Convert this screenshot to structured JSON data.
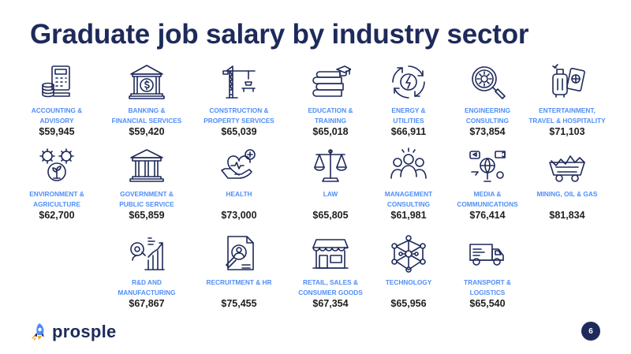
{
  "title": "Graduate job salary by industry sector",
  "sectors": [
    {
      "label": "ACCOUNTING &\nADVISORY",
      "salary": "$59,945",
      "icon": "calculator-coins-icon"
    },
    {
      "label": "BANKING &\nFINANCIAL SERVICES",
      "salary": "$59,420",
      "icon": "bank-dollar-icon"
    },
    {
      "label": "CONSTRUCTION &\nPROPERTY SERVICES",
      "salary": "$65,039",
      "icon": "crane-icon"
    },
    {
      "label": "EDUCATION &\nTRAINING",
      "salary": "$65,018",
      "icon": "books-graduation-cap-icon"
    },
    {
      "label": "ENERGY &\nUTILITIES",
      "salary": "$66,911",
      "icon": "energy-cycle-icon"
    },
    {
      "label": "ENGINEERING\nCONSULTING",
      "salary": "$73,854",
      "icon": "magnifier-gear-icon"
    },
    {
      "label": "ENTERTAINMENT,\nTRAVEL & HOSPITALITY",
      "salary": "$71,103",
      "icon": "luggage-passport-icon"
    },
    {
      "label": "ENVIRONMENT &\nAGRICULTURE",
      "salary": "$62,700",
      "icon": "gears-plant-icon"
    },
    {
      "label": "GOVERNMENT &\nPUBLIC SERVICE",
      "salary": "$65,859",
      "icon": "government-building-icon"
    },
    {
      "label": "HEALTH",
      "salary": "$73,000",
      "icon": "hand-heart-icon"
    },
    {
      "label": "LAW",
      "salary": "$65,805",
      "icon": "scales-icon"
    },
    {
      "label": "MANAGEMENT\nCONSULTING",
      "salary": "$61,981",
      "icon": "team-icon"
    },
    {
      "label": "MEDIA &\nCOMMUNICATIONS",
      "salary": "$76,414",
      "icon": "media-globe-icon"
    },
    {
      "label": "MINING, OIL & GAS",
      "salary": "$81,834",
      "icon": "mine-cart-icon"
    },
    {
      "label": "R&D AND\nMANUFACTURING",
      "salary": "$67,867",
      "icon": "research-chart-icon"
    },
    {
      "label": "RECRUITMENT & HR",
      "salary": "$75,455",
      "icon": "candidate-search-icon"
    },
    {
      "label": "RETAIL, SALES &\nCONSUMER GOODS",
      "salary": "$67,354",
      "icon": "storefront-icon"
    },
    {
      "label": "TECHNOLOGY",
      "salary": "$65,956",
      "icon": "network-icon"
    },
    {
      "label": "TRANSPORT &\nLOGISTICS",
      "salary": "$65,540",
      "icon": "truck-icon"
    }
  ],
  "brand": {
    "name": "prosple",
    "color": "#1e2a5a",
    "accent": "#4f8ef7"
  },
  "page_number": "6"
}
